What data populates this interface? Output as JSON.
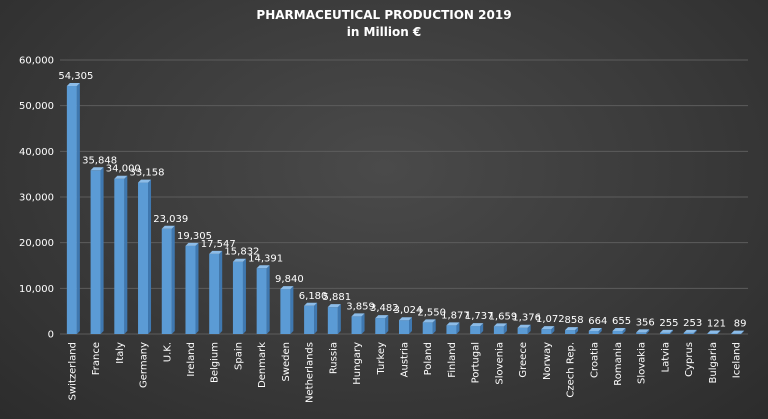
{
  "chart_data": {
    "type": "bar",
    "title": "PHARMACEUTICAL PRODUCTION 2019",
    "subtitle": "in Million €",
    "xlabel": "",
    "ylabel": "",
    "ylim": [
      0,
      60000
    ],
    "yticks": [
      0,
      10000,
      20000,
      30000,
      40000,
      50000,
      60000
    ],
    "ytick_labels": [
      "0",
      "10,000",
      "20,000",
      "30,000",
      "40,000",
      "50,000",
      "60,000"
    ],
    "grid": true,
    "legend": "none",
    "categories": [
      "Switzerland",
      "France",
      "Italy",
      "Germany",
      "U.K.",
      "Ireland",
      "Belgium",
      "Spain",
      "Denmark",
      "Sweden",
      "Netherlands",
      "Russia",
      "Hungary",
      "Turkey",
      "Austria",
      "Poland",
      "Finland",
      "Portugal",
      "Slovenia",
      "Greece",
      "Norway",
      "Czech Rep.",
      "Croatia",
      "Romania",
      "Slovakia",
      "Latvia",
      "Cyprus",
      "Bulgaria",
      "Iceland"
    ],
    "values": [
      54305,
      35848,
      34000,
      33158,
      23039,
      19305,
      17547,
      15832,
      14391,
      9840,
      6180,
      5881,
      3859,
      3482,
      3024,
      2550,
      1877,
      1737,
      1659,
      1376,
      1072,
      858,
      664,
      655,
      356,
      255,
      253,
      121,
      89
    ],
    "value_labels": [
      "54,305",
      "35,848",
      "34,000",
      "33,158",
      "23,039",
      "19,305",
      "17,547",
      "15,832",
      "14,391",
      "9,840",
      "6,180",
      "5,881",
      "3,859",
      "3,482",
      "3,024",
      "2,550",
      "1,877",
      "1,737",
      "1,659",
      "1,376",
      "1,072",
      "858",
      "664",
      "655",
      "356",
      "255",
      "253",
      "121",
      "89"
    ],
    "colors": {
      "bar_front": "#5b9bd5",
      "bar_side": "#3f78b0",
      "bar_top": "#8cbce8"
    }
  }
}
